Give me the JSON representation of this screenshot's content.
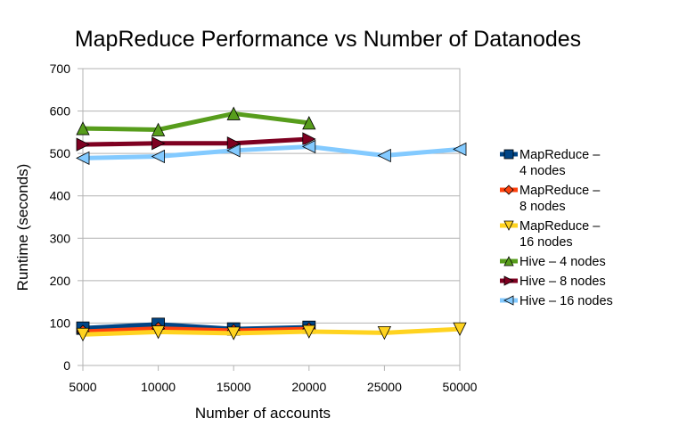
{
  "chart_data": {
    "type": "line",
    "title": "MapReduce Performance vs Number of Datanodes",
    "xlabel": "Number of accounts",
    "ylabel": "Runtime (seconds)",
    "categories": [
      "5000",
      "10000",
      "15000",
      "20000",
      "25000",
      "50000"
    ],
    "ylim": [
      0,
      700
    ],
    "yticks": [
      0,
      100,
      200,
      300,
      400,
      500,
      600,
      700
    ],
    "grid": true,
    "legend_position": "right",
    "series": [
      {
        "name": "MapReduce – 4 nodes",
        "color": "#004586",
        "marker": "square",
        "values": [
          88,
          97,
          86,
          90,
          null,
          null
        ]
      },
      {
        "name": "MapReduce – 8 nodes",
        "color": "#ff420e",
        "marker": "diamond",
        "values": [
          80,
          87,
          82,
          86,
          null,
          null
        ]
      },
      {
        "name": "MapReduce – 16 nodes",
        "color": "#ffd320",
        "marker": "triangle-down",
        "values": [
          73,
          79,
          76,
          80,
          77,
          86
        ]
      },
      {
        "name": "Hive – 4 nodes",
        "color": "#579d1c",
        "marker": "triangle-up",
        "values": [
          559,
          556,
          594,
          572,
          null,
          null
        ]
      },
      {
        "name": "Hive – 8 nodes",
        "color": "#7e0021",
        "marker": "triangle-right",
        "values": [
          521,
          524,
          524,
          534,
          null,
          null
        ]
      },
      {
        "name": "Hive – 16 nodes",
        "color": "#83caff",
        "marker": "triangle-left",
        "values": [
          489,
          493,
          507,
          516,
          495,
          510
        ]
      }
    ]
  }
}
